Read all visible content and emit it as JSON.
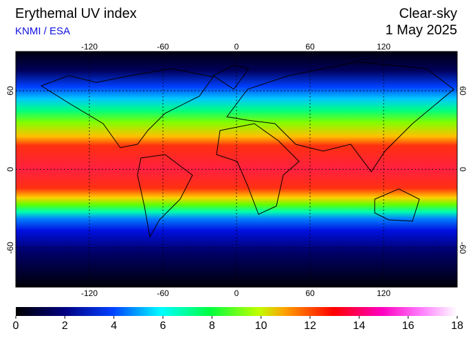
{
  "header": {
    "title": "Erythemal UV index",
    "source": "KNMI / ESA",
    "sky": "Clear-sky",
    "date": "1 May 2025"
  },
  "map": {
    "lon_range": [
      -180,
      180
    ],
    "lat_range": [
      -90,
      90
    ],
    "lon_ticks": [
      -120,
      -60,
      0,
      60,
      120
    ],
    "lat_ticks": [
      60,
      0,
      -60
    ]
  },
  "colorbar": {
    "range": [
      0,
      18
    ],
    "ticks": [
      0,
      2,
      4,
      6,
      8,
      10,
      12,
      14,
      16,
      18
    ]
  }
}
